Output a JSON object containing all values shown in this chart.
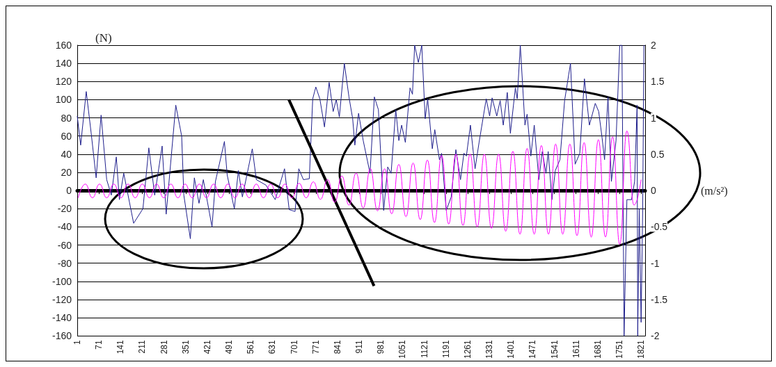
{
  "chart_data": {
    "type": "line",
    "ylabel": "(N)",
    "y2label": "(m/s²)",
    "grid": "y",
    "xlim": [
      1,
      1834
    ],
    "xticks": [
      1,
      71,
      141,
      211,
      281,
      351,
      421,
      491,
      561,
      631,
      701,
      771,
      841,
      911,
      981,
      1051,
      1121,
      1191,
      1261,
      1331,
      1401,
      1471,
      1541,
      1611,
      1681,
      1751,
      1821
    ],
    "ylim": [
      -160,
      160
    ],
    "yticks": [
      -160,
      -140,
      -120,
      -100,
      -80,
      -60,
      -40,
      -20,
      0,
      20,
      40,
      60,
      80,
      100,
      120,
      140,
      160
    ],
    "y2lim": [
      -2,
      2
    ],
    "y2ticks": [
      -2,
      -1.5,
      -1,
      -0.5,
      0,
      0.5,
      1,
      1.5,
      2
    ],
    "series": [
      {
        "color": "#1f1f8c",
        "x": [
          1,
          12,
          30,
          46,
          62,
          78,
          96,
          111,
          127,
          137,
          151,
          183,
          213,
          232,
          251,
          275,
          288,
          319,
          338,
          345,
          366,
          379,
          394,
          408,
          436,
          447,
          476,
          485,
          508,
          521,
          534,
          566,
          579,
          610,
          640,
          670,
          685,
          704,
          716,
          731,
          750,
          761,
          771,
          784,
          799,
          814,
          827,
          837,
          847,
          863,
          878,
          890,
          897,
          909,
          924,
          946,
          960,
          973,
          990,
          1003,
          1014,
          1029,
          1039,
          1048,
          1060,
          1075,
          1083,
          1090,
          1102,
          1113,
          1124,
          1132,
          1147,
          1155,
          1170,
          1177,
          1192,
          1208,
          1223,
          1238,
          1249,
          1257,
          1270,
          1285,
          1298,
          1321,
          1332,
          1340,
          1355,
          1366,
          1376,
          1389,
          1399,
          1415,
          1421,
          1431,
          1446,
          1453,
          1465,
          1476,
          1491,
          1502,
          1514,
          1521,
          1533,
          1544,
          1559,
          1574,
          1593,
          1608,
          1623,
          1638,
          1654,
          1673,
          1684,
          1695,
          1703,
          1714,
          1725,
          1740,
          1752,
          1759,
          1766,
          1775,
          1790,
          1800,
          1808,
          1810,
          1815,
          1821,
          1826,
          1830
        ],
        "values": [
          82,
          50,
          109,
          63,
          14,
          83,
          12,
          -5,
          37,
          -10,
          19,
          -36,
          -20,
          47,
          -5,
          49,
          -26,
          94,
          60,
          -5,
          -53,
          14,
          -14,
          12,
          -40,
          10,
          54,
          17,
          -20,
          22,
          -7,
          46,
          12,
          6,
          -10,
          24,
          -21,
          -23,
          24,
          12,
          13,
          101,
          114,
          101,
          70,
          119,
          87,
          100,
          81,
          140,
          103,
          79,
          50,
          85,
          55,
          19,
          103,
          89,
          -22,
          26,
          19,
          89,
          55,
          72,
          53,
          113,
          106,
          160,
          141,
          160,
          79,
          101,
          46,
          67,
          34,
          41,
          -22,
          -7,
          45,
          12,
          41,
          38,
          72,
          24,
          53,
          101,
          82,
          102,
          82,
          99,
          72,
          108,
          63,
          113,
          101,
          160,
          72,
          84,
          38,
          72,
          12,
          43,
          19,
          43,
          -10,
          22,
          34,
          99,
          140,
          29,
          41,
          123,
          72,
          96,
          87,
          58,
          34,
          103,
          10,
          55,
          160,
          160,
          -160,
          -10,
          -10,
          10,
          94,
          -160,
          -20,
          -145,
          -20,
          160
        ]
      },
      {
        "color": "#000000",
        "x": [
          684,
          959
        ],
        "values": [
          100,
          -105
        ]
      },
      {
        "color": "#ff00ff",
        "axis": "y2",
        "x": [
          4,
          27,
          50,
          73,
          96,
          119,
          142,
          165,
          188,
          211,
          234,
          257,
          280,
          303,
          326,
          349,
          372,
          395,
          418,
          441,
          464,
          487,
          510,
          533,
          556,
          579,
          602,
          625,
          648,
          671,
          694,
          717,
          740,
          763,
          786,
          809,
          832,
          855,
          878,
          901,
          924,
          947,
          970,
          993,
          1016,
          1039,
          1062,
          1085,
          1108,
          1131,
          1154,
          1177,
          1200,
          1223,
          1246,
          1269,
          1292,
          1315,
          1338,
          1361,
          1384,
          1407,
          1430,
          1453,
          1476,
          1499,
          1522,
          1545,
          1568,
          1591,
          1614,
          1637,
          1660,
          1683,
          1706,
          1729,
          1752,
          1775,
          1798,
          1821
        ],
        "values": [
          -0.1,
          0.09,
          -0.1,
          0.09,
          -0.1,
          0.09,
          -0.1,
          0.09,
          -0.1,
          0.09,
          -0.1,
          0.09,
          -0.1,
          0.09,
          -0.1,
          0.09,
          -0.1,
          0.09,
          -0.1,
          0.09,
          -0.1,
          0.09,
          -0.1,
          0.09,
          -0.1,
          0.09,
          -0.1,
          0.09,
          -0.1,
          0.09,
          -0.1,
          0.1,
          -0.1,
          0.12,
          -0.12,
          0.15,
          -0.16,
          0.2,
          -0.2,
          0.24,
          -0.24,
          0.3,
          -0.28,
          0.3,
          -0.32,
          0.36,
          -0.36,
          0.38,
          -0.4,
          0.42,
          -0.44,
          0.48,
          -0.46,
          0.5,
          -0.48,
          0.5,
          -0.5,
          0.5,
          -0.52,
          0.5,
          -0.56,
          0.54,
          -0.6,
          0.58,
          -0.6,
          0.62,
          -0.6,
          0.64,
          -0.6,
          0.64,
          -0.62,
          0.66,
          -0.64,
          0.7,
          -0.64,
          0.74,
          -0.74,
          0.82,
          -0.2,
          0.15
        ]
      }
    ]
  }
}
